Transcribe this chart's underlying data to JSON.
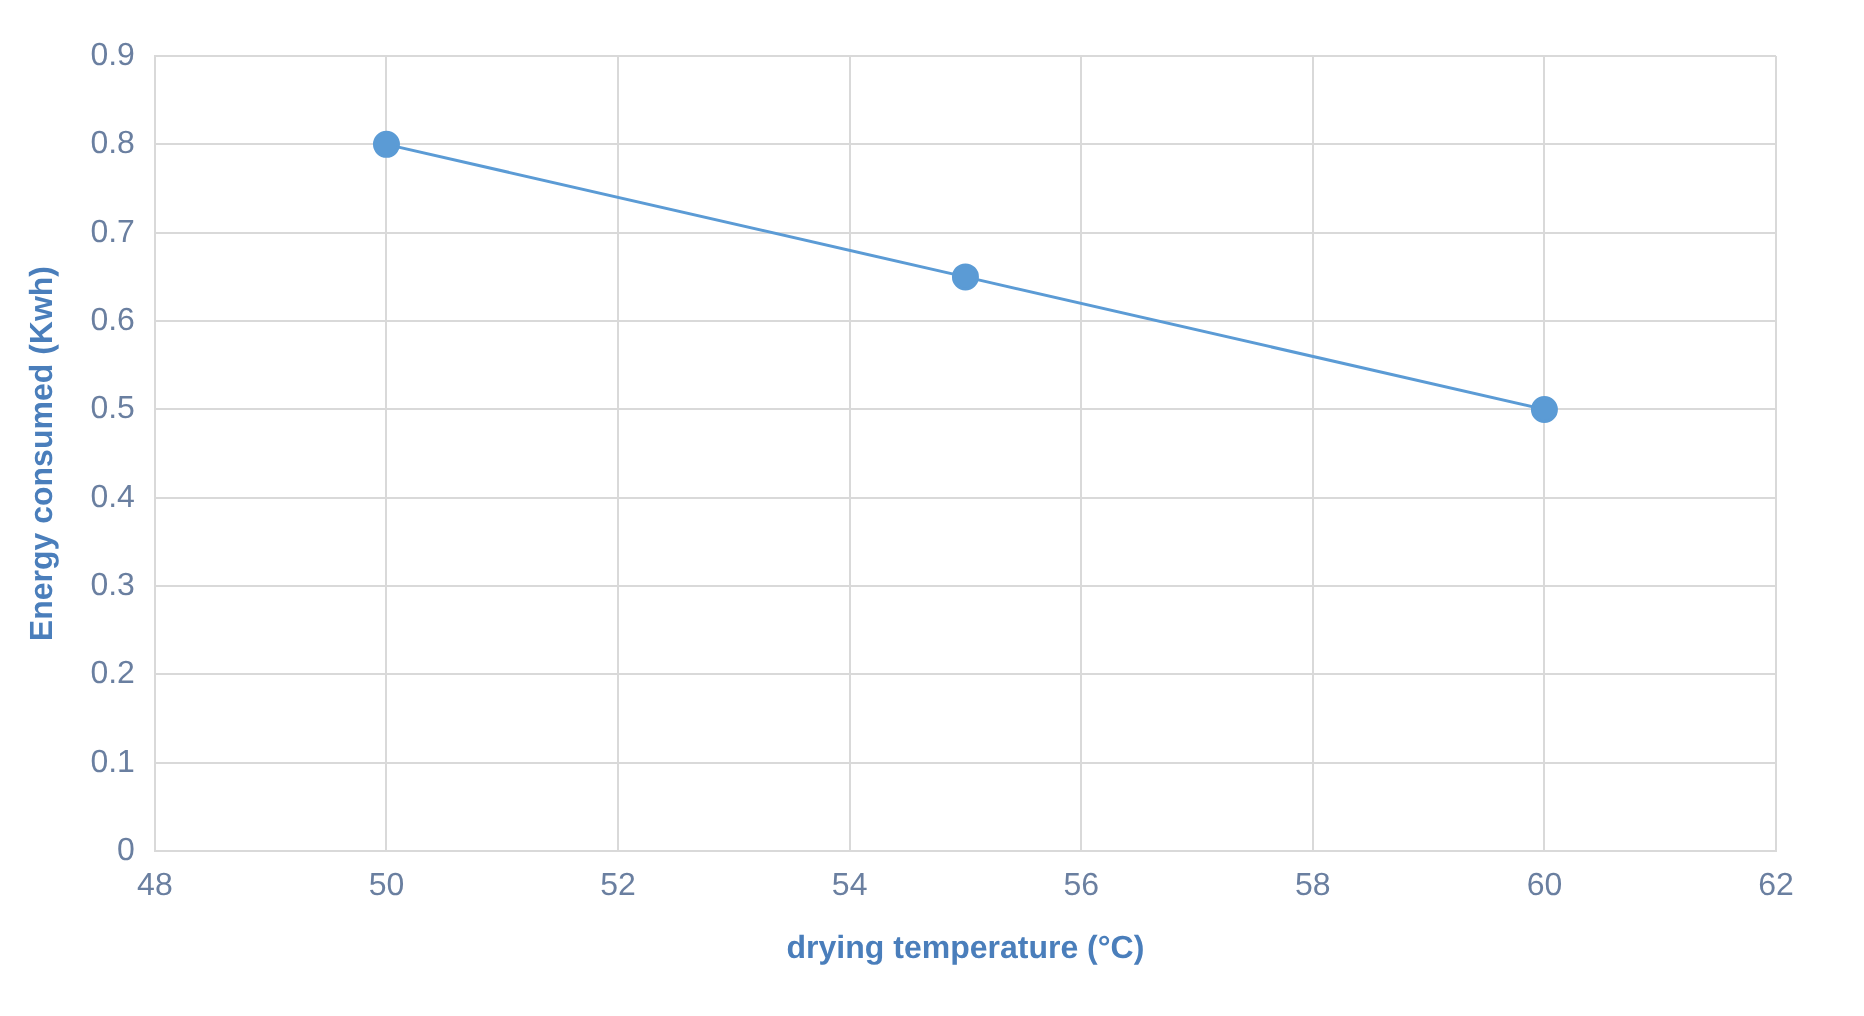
{
  "chart_data": {
    "type": "line",
    "xlabel": "drying temperature (°C)",
    "ylabel": "Energy consumed (Kwh)",
    "x": [
      50,
      55,
      60
    ],
    "series": [
      {
        "color": "#5b9bd5",
        "values": [
          0.8,
          0.65,
          0.5
        ]
      }
    ],
    "xlim": [
      48,
      62
    ],
    "xticks": [
      48,
      50,
      52,
      54,
      56,
      58,
      60,
      62
    ],
    "ylim": [
      0,
      0.9
    ],
    "yticks": [
      0,
      0.1,
      0.2,
      0.3,
      0.4,
      0.5,
      0.6,
      0.7,
      0.8,
      0.9
    ],
    "grid": true,
    "marker": "circle",
    "line_style": "solid"
  }
}
